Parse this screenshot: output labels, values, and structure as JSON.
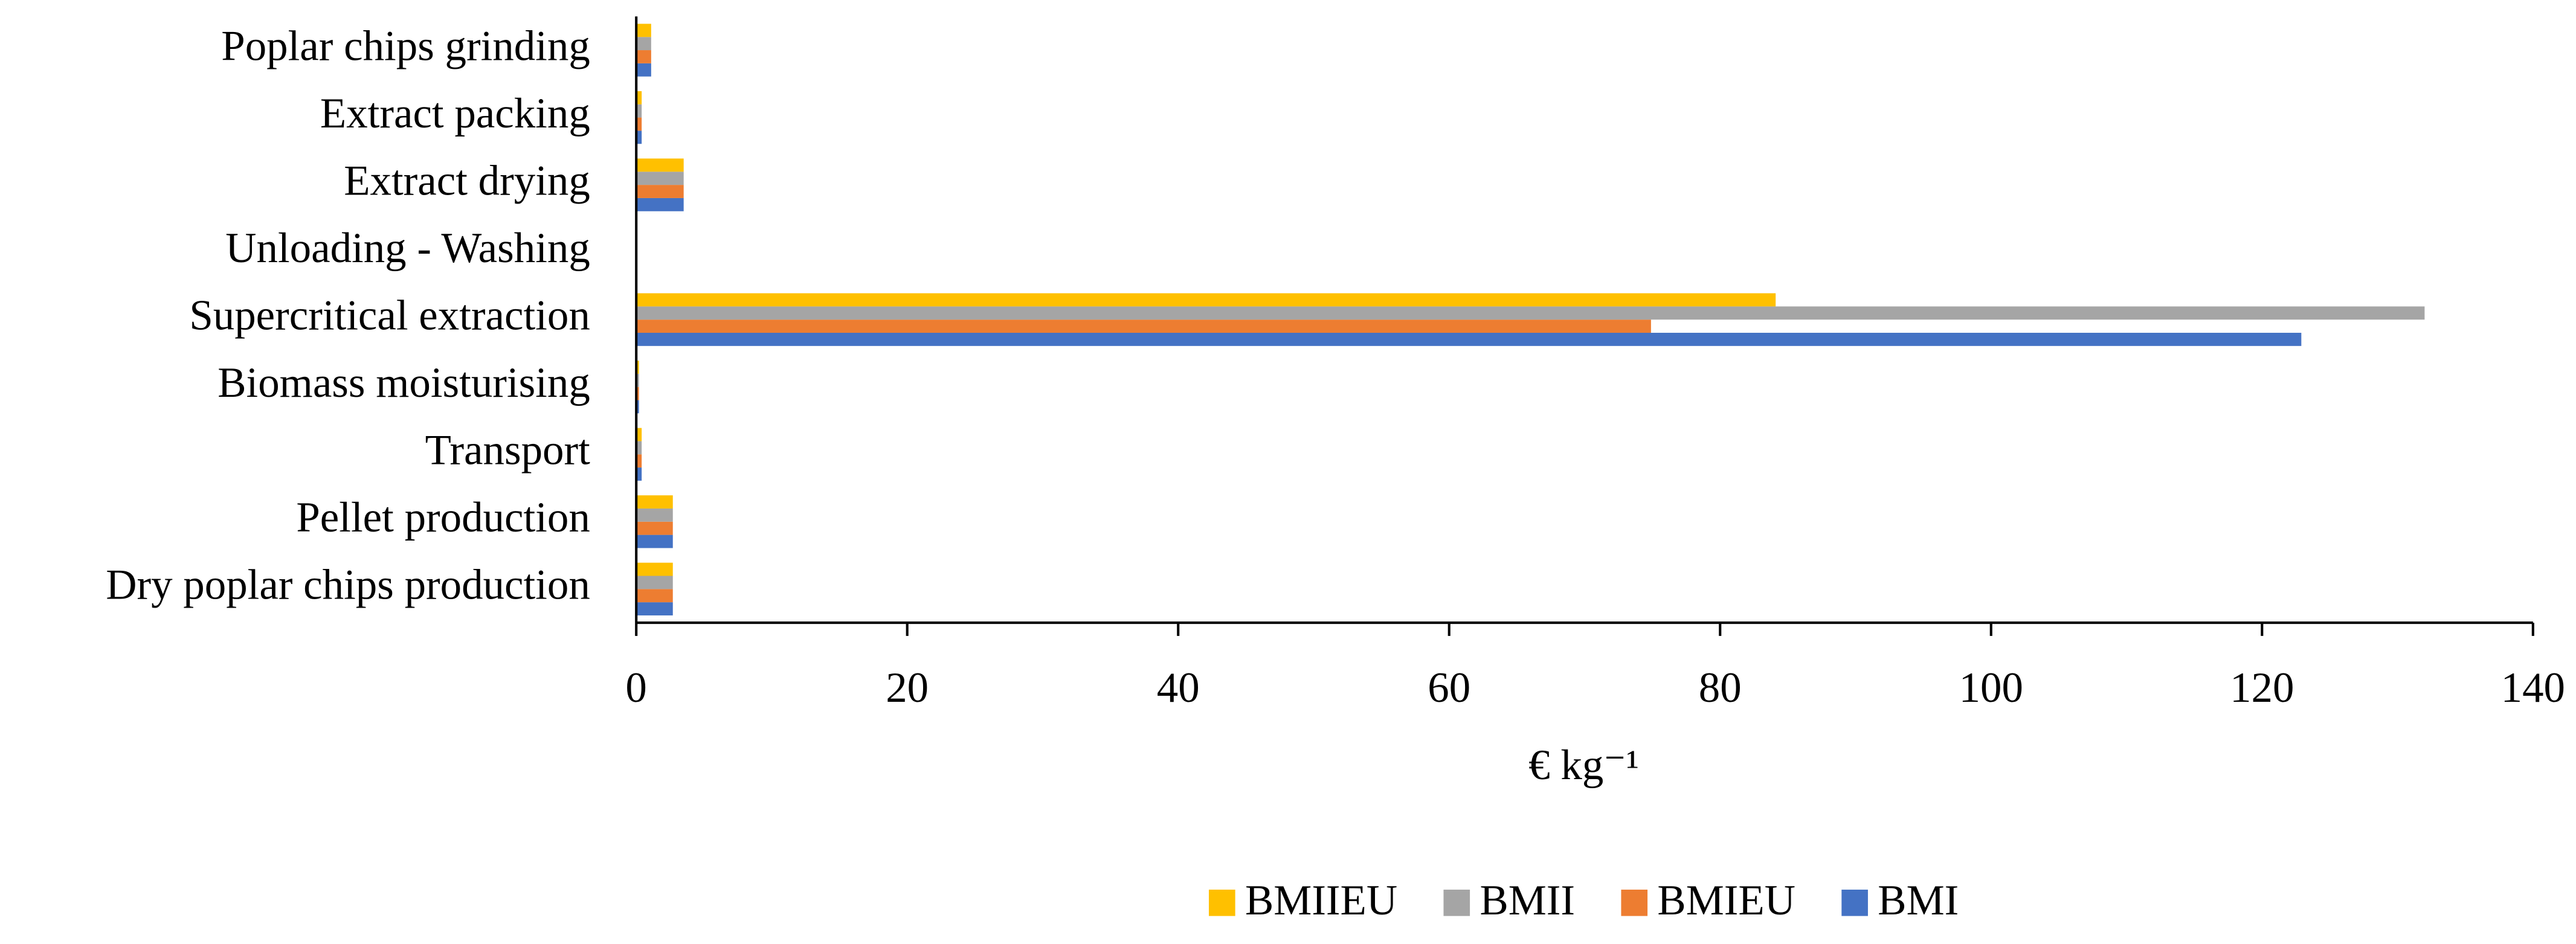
{
  "chart_data": {
    "type": "bar",
    "orientation": "horizontal",
    "x_label": "€ kg⁻¹",
    "categories": [
      "Dry poplar chips production",
      "Pellet production",
      "Transport",
      "Biomass moisturising",
      "Supercritical extraction",
      "Unloading - Washing",
      "Extract drying",
      "Extract packing",
      "Poplar chips grinding"
    ],
    "series": [
      {
        "name": "BMI",
        "color": "#4472c4",
        "values": [
          2.7,
          2.7,
          0.4,
          0.2,
          122.9,
          0,
          3.5,
          0.4,
          1.1
        ]
      },
      {
        "name": "BMIEU",
        "color": "#ed7d31",
        "values": [
          2.7,
          2.7,
          0.4,
          0.2,
          74.9,
          0,
          3.5,
          0.4,
          1.1
        ]
      },
      {
        "name": "BMII",
        "color": "#a5a5a5",
        "values": [
          2.7,
          2.7,
          0.4,
          0.2,
          132,
          0,
          3.5,
          0.4,
          1.1
        ]
      },
      {
        "name": "BMIIEU",
        "color": "#ffc000",
        "values": [
          2.7,
          2.7,
          0.4,
          0.2,
          84.1,
          0,
          3.5,
          0.4,
          1.1
        ]
      }
    ],
    "xlim": [
      0,
      140
    ],
    "xticks": [
      0,
      20,
      40,
      60,
      80,
      100,
      120,
      140
    ],
    "grid": false,
    "legend": "bottom"
  }
}
